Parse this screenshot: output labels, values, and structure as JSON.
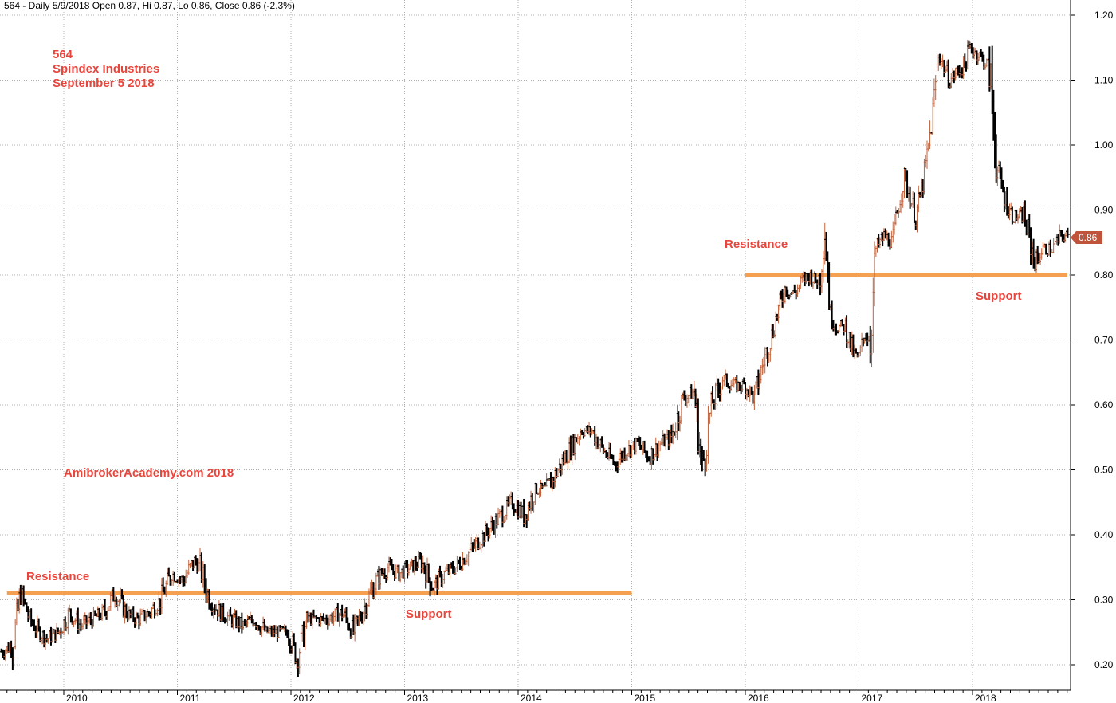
{
  "header": "564 - Daily 5/9/2018 Open 0.87, Hi 0.87, Lo 0.86, Close 0.86 (-2.3%)",
  "annotations": {
    "ticker": "564",
    "company": "Spindex Industries",
    "date": "September 5 2018",
    "watermark": "AmibrokerAcademy.com   2018",
    "resistance_label": "Resistance",
    "support_label": "Support",
    "color": "#e8453c"
  },
  "last_price_label": "0.86",
  "chart_data": {
    "type": "bar",
    "title": "564 - Daily 5/9/2018 Open 0.87, Hi 0.87, Lo 0.86, Close 0.86 (-2.3%)",
    "xlabel": "",
    "ylabel": "",
    "ylim": [
      0.18,
      1.22
    ],
    "xlim": [
      2009.4,
      2018.9
    ],
    "yticks": [
      0.2,
      0.3,
      0.4,
      0.5,
      0.6,
      0.7,
      0.8,
      0.9,
      1.0,
      1.1,
      1.2
    ],
    "ytick_labels": [
      "0.20",
      "0.30",
      "0.40",
      "0.50",
      "0.60",
      "0.70",
      "0.80",
      "0.90",
      "1.00",
      "1.10",
      "1.20"
    ],
    "xticks": [
      2010,
      2011,
      2012,
      2013,
      2014,
      2015,
      2016,
      2017,
      2018
    ],
    "xtick_labels": [
      "2010",
      "2011",
      "2012",
      "2013",
      "2014",
      "2015",
      "2016",
      "2017",
      "2018"
    ],
    "grid": true,
    "colors": {
      "up": "#c0623a",
      "down": "#000000",
      "level": "#f5a050",
      "price_marker": "#c0543a"
    },
    "levels": [
      {
        "name": "Resistance / Support",
        "value": 0.31,
        "from": 2009.5,
        "to": 2015.0
      },
      {
        "name": "Resistance / Support",
        "value": 0.8,
        "from": 2016.0,
        "to": 2018.9
      }
    ],
    "last_close": 0.86,
    "series": [
      {
        "values": [
          [
            2009.45,
            0.22
          ],
          [
            2009.55,
            0.23
          ],
          [
            2009.62,
            0.31
          ],
          [
            2009.7,
            0.27
          ],
          [
            2009.78,
            0.25
          ],
          [
            2009.85,
            0.24
          ],
          [
            2009.95,
            0.25
          ],
          [
            2010.05,
            0.28
          ],
          [
            2010.15,
            0.26
          ],
          [
            2010.25,
            0.27
          ],
          [
            2010.35,
            0.28
          ],
          [
            2010.45,
            0.31
          ],
          [
            2010.55,
            0.28
          ],
          [
            2010.65,
            0.27
          ],
          [
            2010.75,
            0.28
          ],
          [
            2010.85,
            0.3
          ],
          [
            2010.95,
            0.34
          ],
          [
            2011.05,
            0.33
          ],
          [
            2011.15,
            0.36
          ],
          [
            2011.2,
            0.35
          ],
          [
            2011.28,
            0.3
          ],
          [
            2011.38,
            0.28
          ],
          [
            2011.48,
            0.27
          ],
          [
            2011.58,
            0.26
          ],
          [
            2011.68,
            0.27
          ],
          [
            2011.78,
            0.25
          ],
          [
            2011.88,
            0.25
          ],
          [
            2011.98,
            0.25
          ],
          [
            2012.05,
            0.21
          ],
          [
            2012.15,
            0.27
          ],
          [
            2012.3,
            0.27
          ],
          [
            2012.45,
            0.28
          ],
          [
            2012.55,
            0.25
          ],
          [
            2012.65,
            0.29
          ],
          [
            2012.75,
            0.33
          ],
          [
            2012.85,
            0.35
          ],
          [
            2012.95,
            0.34
          ],
          [
            2013.05,
            0.35
          ],
          [
            2013.15,
            0.36
          ],
          [
            2013.25,
            0.32
          ],
          [
            2013.35,
            0.34
          ],
          [
            2013.45,
            0.35
          ],
          [
            2013.55,
            0.37
          ],
          [
            2013.65,
            0.39
          ],
          [
            2013.75,
            0.41
          ],
          [
            2013.85,
            0.43
          ],
          [
            2013.95,
            0.45
          ],
          [
            2014.05,
            0.43
          ],
          [
            2014.15,
            0.47
          ],
          [
            2014.25,
            0.47
          ],
          [
            2014.35,
            0.5
          ],
          [
            2014.45,
            0.53
          ],
          [
            2014.55,
            0.56
          ],
          [
            2014.65,
            0.56
          ],
          [
            2014.75,
            0.53
          ],
          [
            2014.85,
            0.51
          ],
          [
            2014.95,
            0.53
          ],
          [
            2015.05,
            0.54
          ],
          [
            2015.15,
            0.52
          ],
          [
            2015.25,
            0.54
          ],
          [
            2015.35,
            0.55
          ],
          [
            2015.45,
            0.61
          ],
          [
            2015.55,
            0.62
          ],
          [
            2015.62,
            0.5
          ],
          [
            2015.7,
            0.6
          ],
          [
            2015.8,
            0.64
          ],
          [
            2015.9,
            0.63
          ],
          [
            2016.0,
            0.63
          ],
          [
            2016.08,
            0.61
          ],
          [
            2016.15,
            0.66
          ],
          [
            2016.22,
            0.7
          ],
          [
            2016.28,
            0.74
          ],
          [
            2016.35,
            0.78
          ],
          [
            2016.42,
            0.77
          ],
          [
            2016.5,
            0.79
          ],
          [
            2016.56,
            0.8
          ],
          [
            2016.62,
            0.79
          ],
          [
            2016.66,
            0.8
          ],
          [
            2016.7,
            0.87
          ],
          [
            2016.75,
            0.74
          ],
          [
            2016.8,
            0.72
          ],
          [
            2016.88,
            0.72
          ],
          [
            2016.95,
            0.68
          ],
          [
            2017.0,
            0.67
          ],
          [
            2017.05,
            0.71
          ],
          [
            2017.1,
            0.7
          ],
          [
            2017.15,
            0.84
          ],
          [
            2017.22,
            0.86
          ],
          [
            2017.3,
            0.85
          ],
          [
            2017.35,
            0.91
          ],
          [
            2017.4,
            0.95
          ],
          [
            2017.45,
            0.92
          ],
          [
            2017.5,
            0.89
          ],
          [
            2017.55,
            0.93
          ],
          [
            2017.6,
            0.98
          ],
          [
            2017.65,
            1.05
          ],
          [
            2017.7,
            1.14
          ],
          [
            2017.75,
            1.12
          ],
          [
            2017.8,
            1.1
          ],
          [
            2017.85,
            1.11
          ],
          [
            2017.92,
            1.12
          ],
          [
            2017.98,
            1.15
          ],
          [
            2018.05,
            1.14
          ],
          [
            2018.1,
            1.13
          ],
          [
            2018.15,
            1.12
          ],
          [
            2018.22,
            0.96
          ],
          [
            2018.28,
            0.92
          ],
          [
            2018.35,
            0.89
          ],
          [
            2018.45,
            0.89
          ],
          [
            2018.55,
            0.82
          ],
          [
            2018.62,
            0.84
          ],
          [
            2018.7,
            0.84
          ],
          [
            2018.78,
            0.86
          ],
          [
            2018.85,
            0.86
          ]
        ]
      }
    ]
  }
}
